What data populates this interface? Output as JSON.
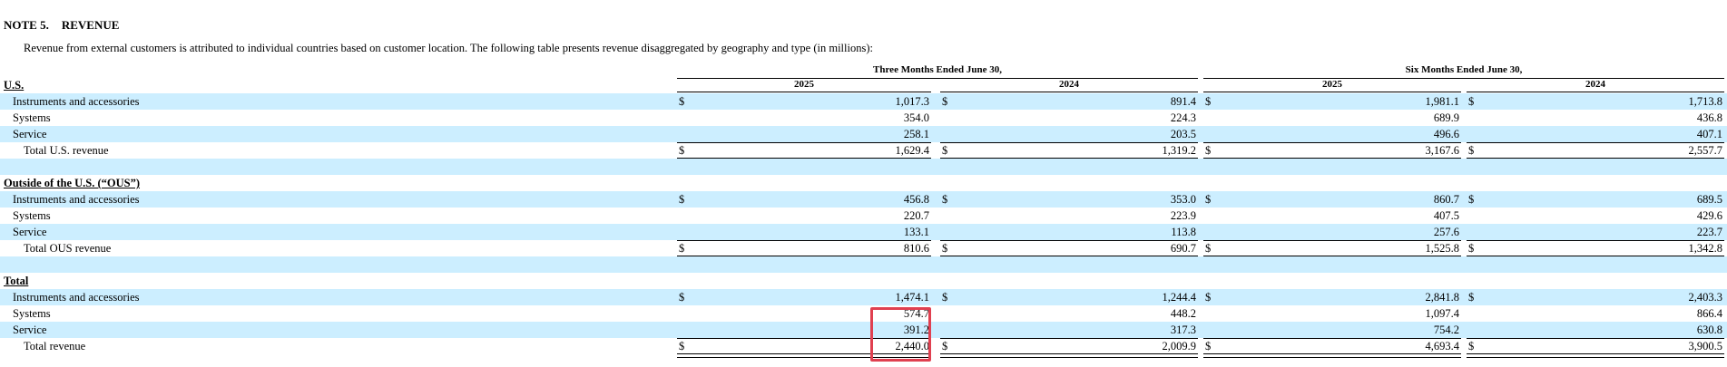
{
  "note": {
    "number": "NOTE 5.",
    "title": "REVENUE"
  },
  "intro": "Revenue from external customers is attributed to individual countries based on customer location. The following table presents revenue disaggregated by geography and type (in millions):",
  "periods": [
    "Three Months Ended June 30,",
    "Six Months Ended June 30,"
  ],
  "years": [
    "2025",
    "2024",
    "2025",
    "2024"
  ],
  "currency_symbol": "$",
  "sections": [
    {
      "heading": "U.S.",
      "rows": [
        {
          "label": "Instruments and accessories",
          "values": [
            "1,017.3",
            "891.4",
            "1,981.1",
            "1,713.8"
          ]
        },
        {
          "label": "Systems",
          "values": [
            "354.0",
            "224.3",
            "689.9",
            "436.8"
          ]
        },
        {
          "label": "Service",
          "values": [
            "258.1",
            "203.5",
            "496.6",
            "407.1"
          ]
        }
      ],
      "total": {
        "label": "Total U.S. revenue",
        "values": [
          "1,629.4",
          "1,319.2",
          "3,167.6",
          "2,557.7"
        ]
      }
    },
    {
      "heading": "Outside of the U.S. (“OUS”)",
      "rows": [
        {
          "label": "Instruments and accessories",
          "values": [
            "456.8",
            "353.0",
            "860.7",
            "689.5"
          ]
        },
        {
          "label": "Systems",
          "values": [
            "220.7",
            "223.9",
            "407.5",
            "429.6"
          ]
        },
        {
          "label": "Service",
          "values": [
            "133.1",
            "113.8",
            "257.6",
            "223.7"
          ]
        }
      ],
      "total": {
        "label": "Total OUS revenue",
        "values": [
          "810.6",
          "690.7",
          "1,525.8",
          "1,342.8"
        ]
      }
    },
    {
      "heading": "Total",
      "rows": [
        {
          "label": "Instruments and accessories",
          "values": [
            "1,474.1",
            "1,244.4",
            "2,841.8",
            "2,403.3"
          ]
        },
        {
          "label": "Systems",
          "values": [
            "574.7",
            "448.2",
            "1,097.4",
            "866.4"
          ]
        },
        {
          "label": "Service",
          "values": [
            "391.2",
            "317.3",
            "754.2",
            "630.8"
          ]
        }
      ],
      "total": {
        "label": "Total revenue",
        "values": [
          "2,440.0",
          "2,009.9",
          "4,693.4",
          "3,900.5"
        ]
      }
    }
  ],
  "highlight_color": "#e04050",
  "row_shade_color": "#cceeff"
}
